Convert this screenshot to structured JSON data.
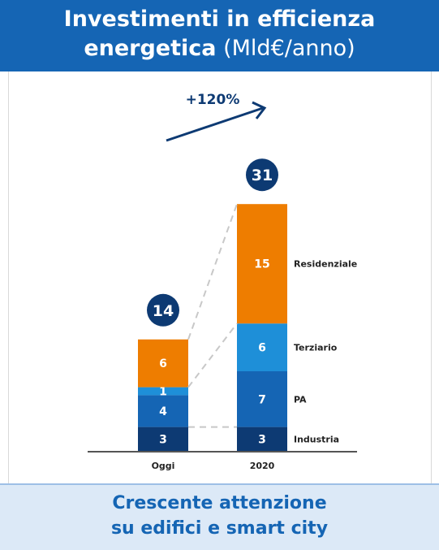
{
  "header": {
    "title_bold_1": "Investimenti in efficienza",
    "title_bold_2": "energetica",
    "title_unit": "(Mld€/anno)"
  },
  "footer": {
    "line1": "Crescente attenzione",
    "line2": "su edifici e smart city"
  },
  "colors": {
    "header_bg": "#1565b4",
    "Industria": "#0d3a73",
    "PA": "#1565b4",
    "Terziario": "#1e8fd8",
    "Residenziale": "#ee7d00",
    "total_badge": "#0d3a73"
  },
  "chart_data": {
    "type": "bar",
    "stacked": true,
    "categories": [
      "Oggi",
      "2020"
    ],
    "series": [
      {
        "name": "Industria",
        "values": [
          3,
          3
        ]
      },
      {
        "name": "PA",
        "values": [
          4,
          7
        ]
      },
      {
        "name": "Terziario",
        "values": [
          1,
          6
        ]
      },
      {
        "name": "Residenziale",
        "values": [
          6,
          15
        ]
      }
    ],
    "totals": [
      14,
      31
    ],
    "growth_label": "+120%",
    "legend_placement": "right of 2020 bar"
  }
}
